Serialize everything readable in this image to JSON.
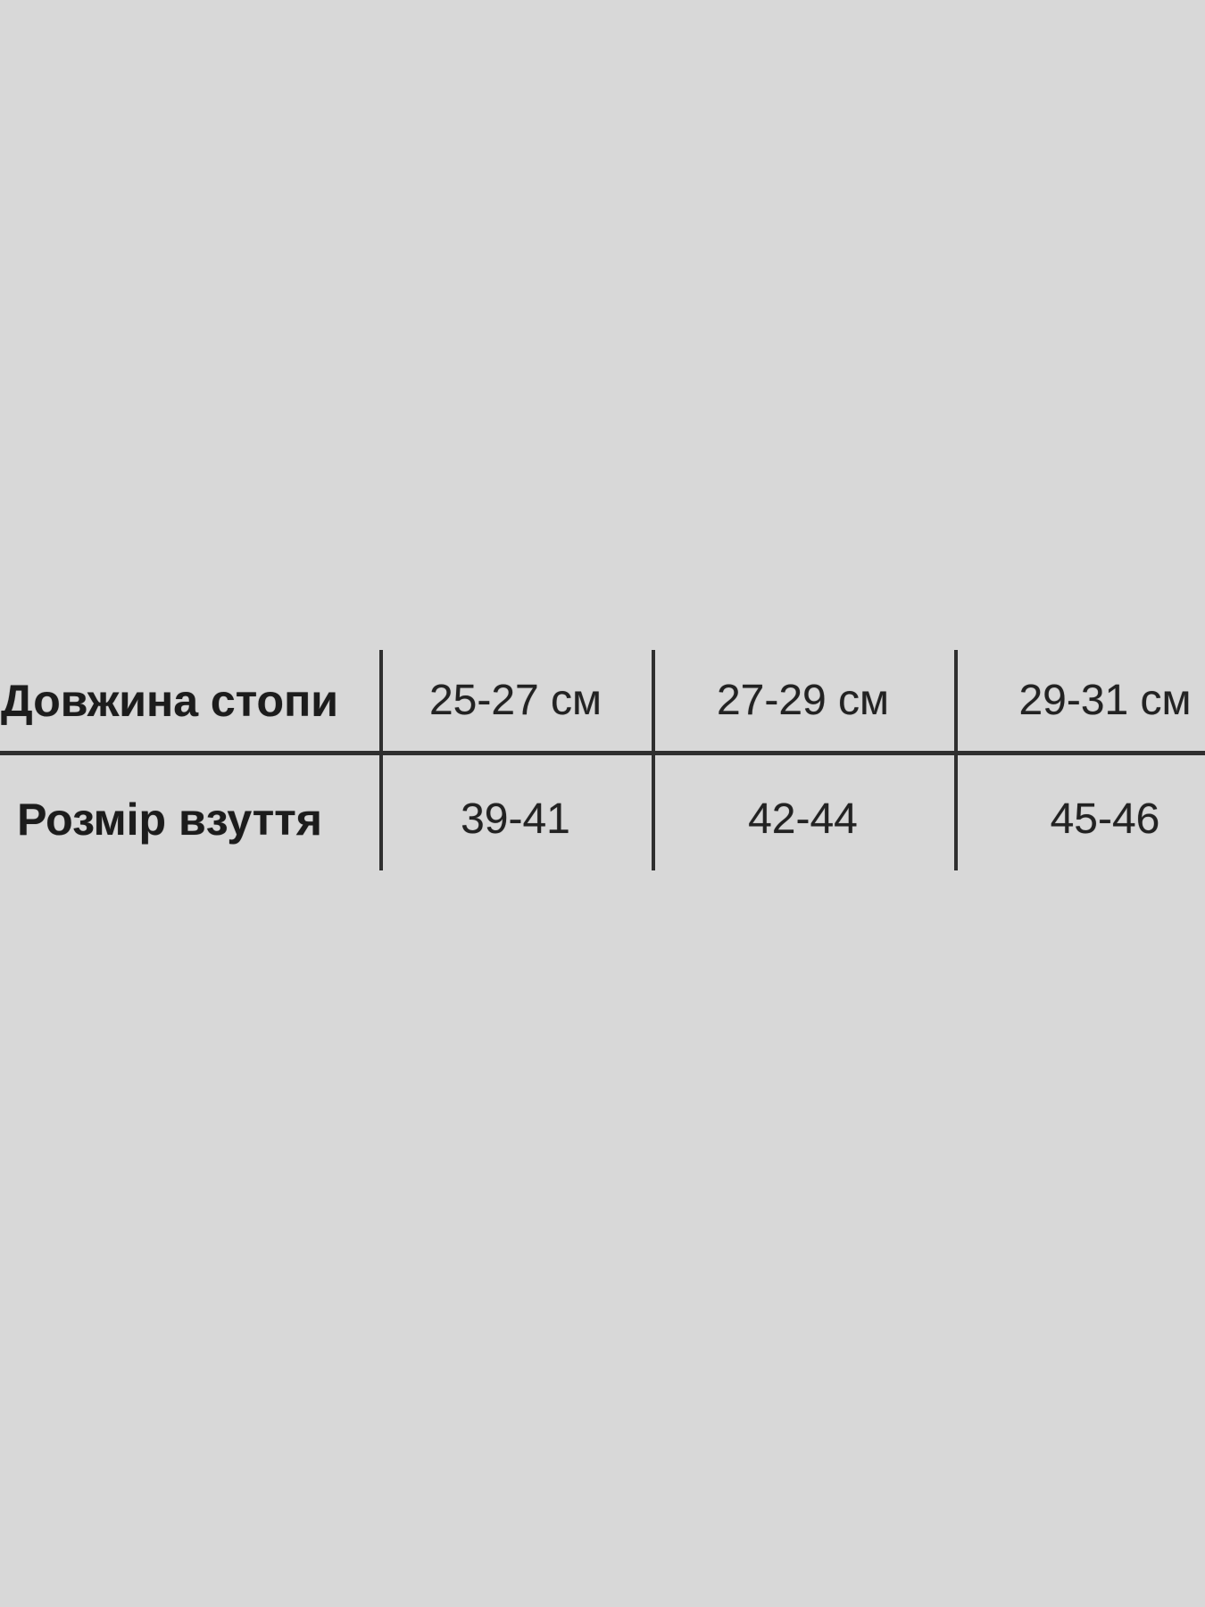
{
  "canvas": {
    "background_color": "#d8d8d8",
    "line_color": "#2f2f2f",
    "header_text_color": "#1c1c1c",
    "value_text_color": "#222222"
  },
  "chart_data": {
    "type": "table",
    "rows": [
      {
        "label": "Довжина стопи",
        "values": [
          "25-27 см",
          "27-29 см",
          "29-31 см"
        ]
      },
      {
        "label": "Розмір взуття",
        "values": [
          "39-41",
          "42-44",
          "45-46"
        ]
      }
    ]
  }
}
